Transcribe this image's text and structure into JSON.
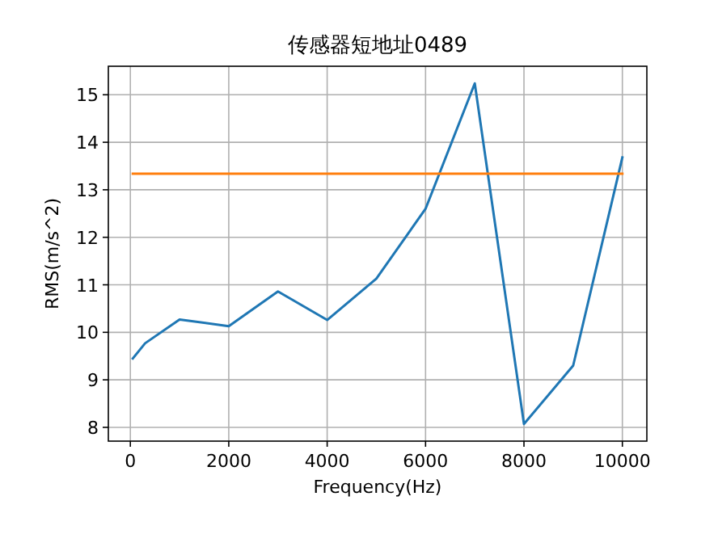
{
  "chart_data": {
    "type": "line",
    "title": "传感器短地址0489",
    "xlabel": "Frequency(Hz)",
    "ylabel": "RMS(m/s^2)",
    "series": [
      {
        "color": "#1f77b4",
        "x": [
          50,
          300,
          1000,
          2000,
          3000,
          4000,
          5000,
          6000,
          7000,
          8000,
          9000,
          10000
        ],
        "values": [
          9.45,
          9.77,
          10.27,
          10.13,
          10.86,
          10.26,
          11.13,
          12.6,
          15.24,
          8.07,
          9.3,
          13.68
        ]
      },
      {
        "color": "#ff7f0e",
        "x": [
          50,
          10000
        ],
        "values": [
          13.34,
          13.34
        ]
      }
    ],
    "xlim": [
      -447.5,
      10497.5
    ],
    "ylim": [
      7.71,
      15.6
    ],
    "xticks": [
      0,
      2000,
      4000,
      6000,
      8000,
      10000
    ],
    "yticks": [
      8,
      9,
      10,
      11,
      12,
      13,
      14,
      15
    ],
    "grid": true,
    "marker": "none",
    "line_style": "solid"
  }
}
